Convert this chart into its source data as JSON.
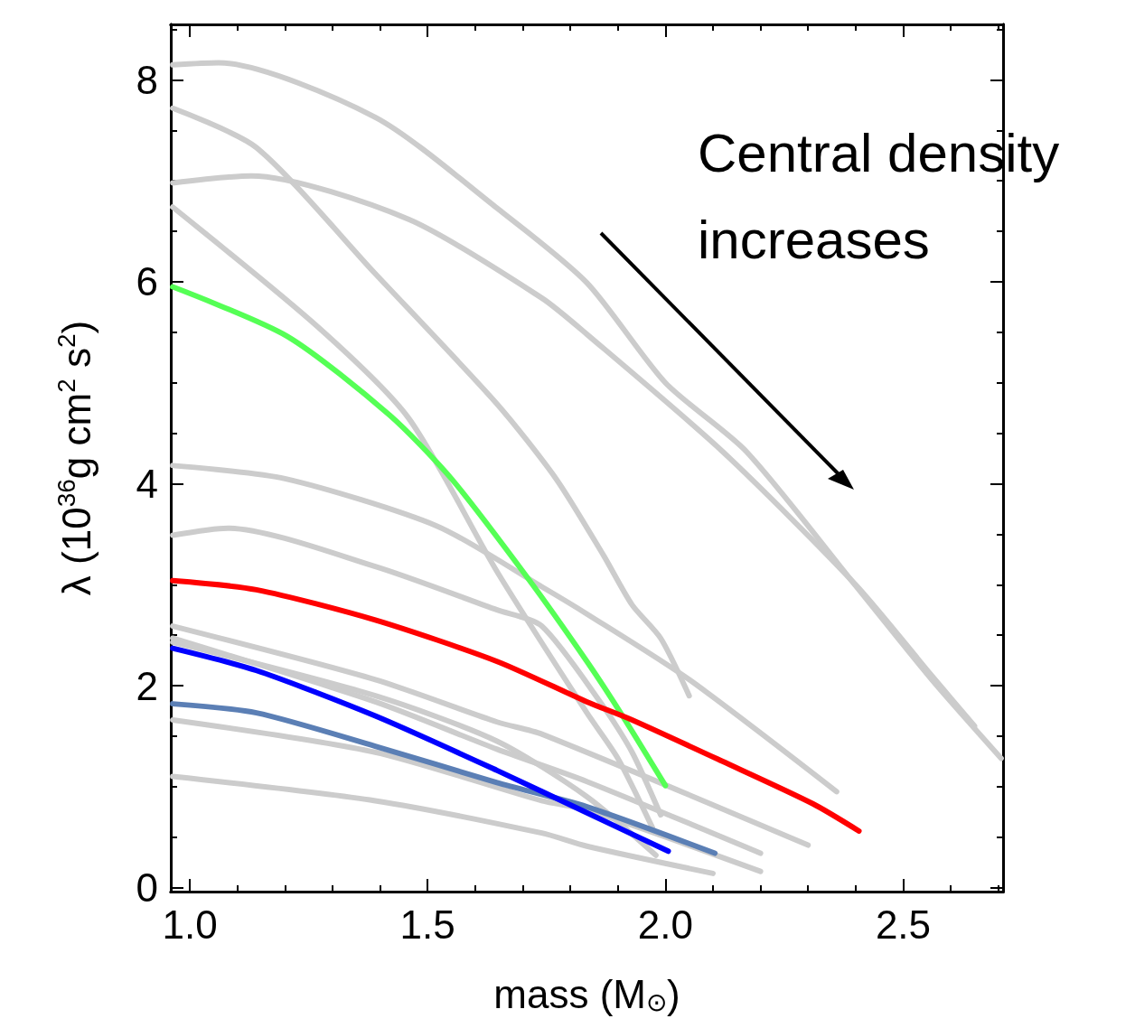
{
  "chart_data": {
    "type": "line",
    "xlabel": "mass (M$_{⊙}$)",
    "ylabel": "λ (10$^{36}$g cm$^{2}$ s$^{2}$)",
    "annotations": [
      "Central density increases"
    ],
    "xlim": [
      0.96,
      2.71
    ],
    "ylim": [
      -0.04,
      8.55
    ],
    "xticks": [
      {
        "value": 1,
        "label": "1.0"
      },
      {
        "value": 1.1,
        "label": null
      },
      {
        "value": 1.2,
        "label": null
      },
      {
        "value": 1.3,
        "label": null
      },
      {
        "value": 1.4,
        "label": null
      },
      {
        "value": 1.5,
        "label": "1.5"
      },
      {
        "value": 1.6,
        "label": null
      },
      {
        "value": 1.7,
        "label": null
      },
      {
        "value": 1.8,
        "label": null
      },
      {
        "value": 1.9,
        "label": null
      },
      {
        "value": 2,
        "label": "2.0"
      },
      {
        "value": 2.1,
        "label": null
      },
      {
        "value": 2.2,
        "label": null
      },
      {
        "value": 2.3,
        "label": null
      },
      {
        "value": 2.4,
        "label": null
      },
      {
        "value": 2.5,
        "label": "2.5"
      },
      {
        "value": 2.6,
        "label": null
      },
      {
        "value": 2.7,
        "label": null
      }
    ],
    "yticks": [
      0,
      {
        "value": 0.5,
        "label": null
      },
      {
        "value": 1,
        "label": null
      },
      {
        "value": 1.5,
        "label": null
      },
      2,
      {
        "value": 2.5,
        "label": null
      },
      {
        "value": 3,
        "label": null
      },
      {
        "value": 3.5,
        "label": null
      },
      4,
      {
        "value": 4.5,
        "label": null
      },
      {
        "value": 5,
        "label": null
      },
      {
        "value": 5.5,
        "label": null
      },
      6,
      {
        "value": 6.5,
        "label": null
      },
      {
        "value": 7,
        "label": null
      },
      {
        "value": 7.5,
        "label": null
      },
      8,
      {
        "value": 8.5,
        "label": null
      }
    ],
    "grid": false,
    "marker": "none",
    "line_style": "solid",
    "series": [
      {
        "color": "#cccccc",
        "x": [
          0.964,
          1.06,
          1.39,
          1.646,
          1.835,
          2.0,
          2.17,
          2.4,
          2.56,
          2.706
        ],
        "values": [
          8.15,
          8.17,
          7.63,
          6.73,
          5.99,
          5.0,
          4.32,
          2.99,
          2.06,
          1.28
        ]
      },
      {
        "color": "#cccccc",
        "x": [
          0.964,
          1.14,
          1.39,
          1.646,
          1.77,
          1.87,
          1.93,
          1.99,
          2.05
        ],
        "values": [
          7.72,
          7.33,
          6.08,
          4.79,
          4.05,
          3.29,
          2.8,
          2.47,
          1.9
        ]
      },
      {
        "color": "#cccccc",
        "x": [
          0.964,
          1.13,
          1.46,
          1.74,
          1.835,
          2.12,
          2.4,
          2.56,
          2.65
        ],
        "values": [
          6.98,
          7.05,
          6.62,
          5.84,
          5.48,
          4.32,
          3.0,
          2.1,
          1.6
        ]
      },
      {
        "color": "#cccccc",
        "x": [
          0.964,
          1.27,
          1.46,
          1.646,
          1.835,
          1.9,
          1.973
        ],
        "values": [
          6.74,
          5.55,
          4.65,
          3.13,
          1.73,
          1.28,
          0.59
        ]
      },
      {
        "color": "#cccccc",
        "x": [
          0.964,
          1.2,
          1.52,
          1.74,
          1.835,
          2.05,
          2.36
        ],
        "values": [
          4.18,
          4.05,
          3.58,
          2.98,
          2.71,
          2.06,
          0.95
        ]
      },
      {
        "color": "#cccccc",
        "x": [
          0.964,
          1.08,
          1.39,
          1.646,
          1.74,
          1.87,
          1.93,
          1.99
        ],
        "values": [
          3.49,
          3.56,
          3.18,
          2.75,
          2.59,
          1.79,
          1.34,
          0.72
        ]
      },
      {
        "color": "#cccccc",
        "x": [
          0.964,
          1.39,
          1.646,
          1.74,
          2.3
        ],
        "values": [
          2.59,
          2.06,
          1.64,
          1.52,
          0.42
        ]
      },
      {
        "color": "#cccccc",
        "x": [
          0.964,
          1.39,
          1.646,
          1.835,
          2.2
        ],
        "values": [
          2.47,
          1.84,
          1.37,
          1.05,
          0.34
        ]
      },
      {
        "color": "#cccccc",
        "x": [
          0.964,
          1.39,
          1.646,
          1.835,
          1.98
        ],
        "values": [
          2.43,
          1.9,
          1.45,
          0.9,
          0.32
        ]
      },
      {
        "color": "#cccccc",
        "x": [
          0.964,
          1.39,
          1.74,
          1.835,
          2.2
        ],
        "values": [
          1.66,
          1.34,
          0.86,
          0.77,
          0.16
        ]
      },
      {
        "color": "#cccccc",
        "x": [
          0.964,
          1.39,
          1.74,
          1.835,
          2.1
        ],
        "values": [
          1.1,
          0.86,
          0.54,
          0.41,
          0.14
        ]
      },
      {
        "color": "#5b7fb5",
        "x": [
          0.964,
          1.14,
          1.39,
          1.646,
          1.835,
          2.104
        ],
        "values": [
          1.82,
          1.73,
          1.4,
          1.04,
          0.8,
          0.34
        ]
      },
      {
        "color": "#55ff55",
        "x": [
          0.964,
          1.205,
          1.42,
          1.55,
          1.71,
          1.835,
          1.91,
          2.0
        ],
        "values": [
          5.95,
          5.46,
          4.68,
          4.05,
          3.07,
          2.24,
          1.7,
          1.01
        ]
      },
      {
        "color": "#ff0000",
        "x": [
          0.964,
          1.14,
          1.39,
          1.646,
          1.835,
          1.93,
          2.12,
          2.31,
          2.407
        ],
        "values": [
          3.04,
          2.95,
          2.65,
          2.24,
          1.84,
          1.66,
          1.25,
          0.83,
          0.56
        ]
      },
      {
        "color": "#0000ff",
        "x": [
          0.964,
          1.14,
          1.39,
          1.646,
          1.835,
          2.006
        ],
        "values": [
          2.37,
          2.15,
          1.7,
          1.16,
          0.74,
          0.36
        ]
      }
    ]
  }
}
